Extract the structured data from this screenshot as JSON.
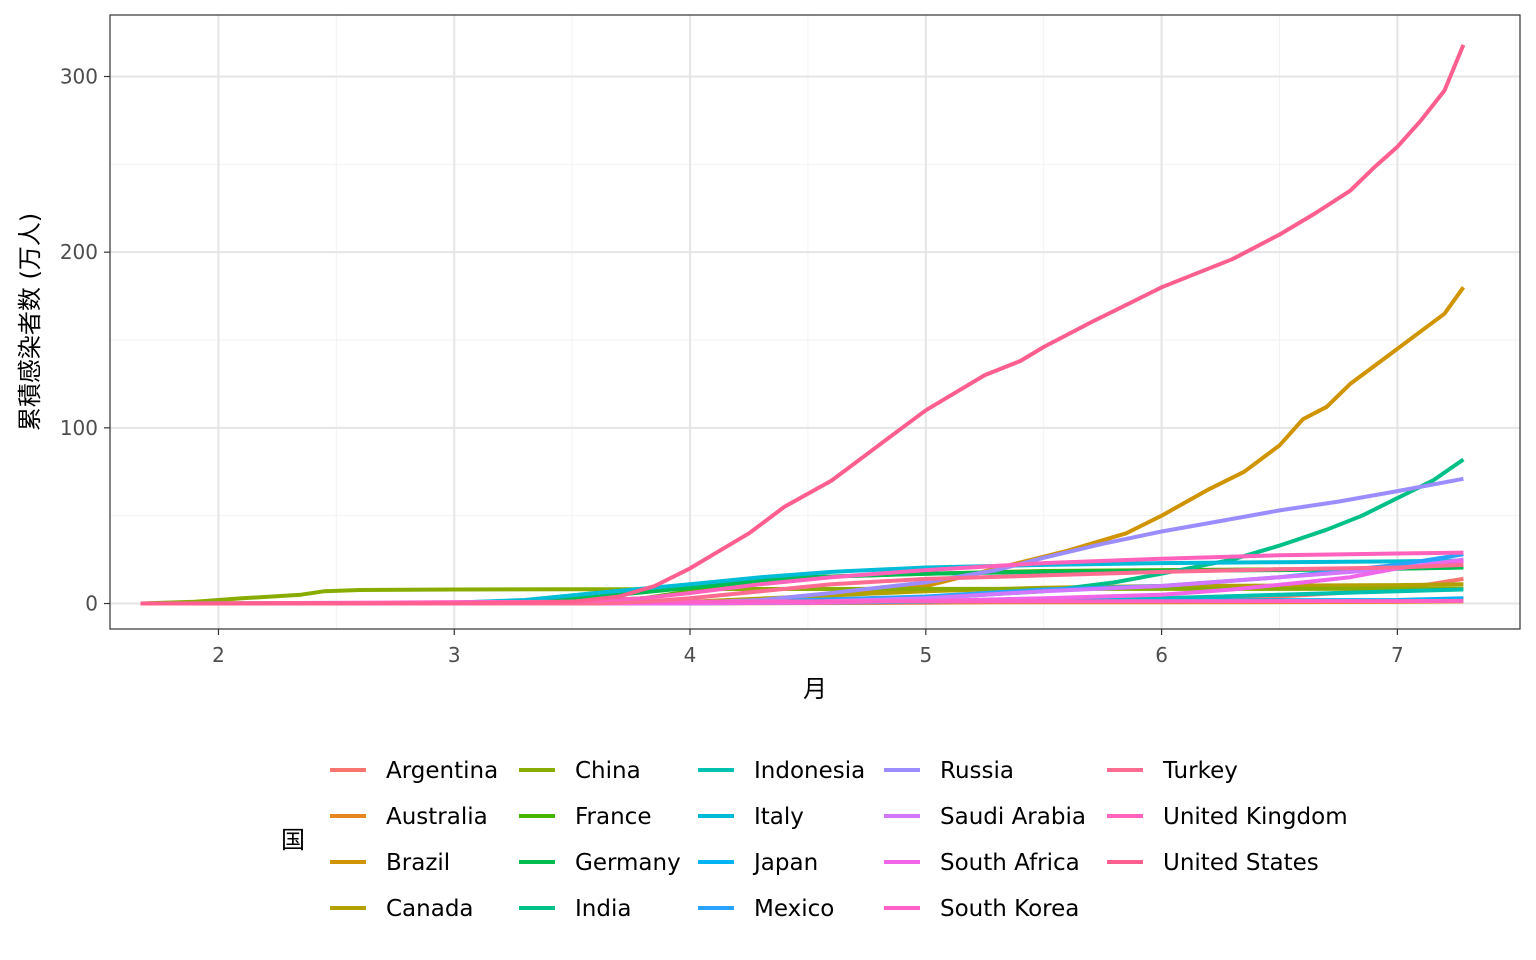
{
  "chart_data": {
    "type": "line",
    "xlabel": "月",
    "ylabel": "累積感染者数 (万人)",
    "xlim": [
      1.54,
      7.52
    ],
    "ylim": [
      -14.5,
      335
    ],
    "x_ticks": [
      2,
      3,
      4,
      5,
      6,
      7
    ],
    "y_ticks": [
      0,
      100,
      200,
      300
    ],
    "grid": true,
    "legend": {
      "title": "国",
      "position": "bottom",
      "columns": 5
    },
    "series": [
      {
        "name": "Argentina",
        "color": "#F8766D",
        "points": [
          [
            1.67,
            0
          ],
          [
            3.5,
            0
          ],
          [
            4,
            0.1
          ],
          [
            5,
            0.4
          ],
          [
            5.5,
            1
          ],
          [
            6,
            2
          ],
          [
            6.5,
            4
          ],
          [
            7,
            8
          ],
          [
            7.28,
            14
          ]
        ]
      },
      {
        "name": "Australia",
        "color": "#E7851E",
        "points": [
          [
            1.67,
            0
          ],
          [
            3,
            0
          ],
          [
            3.8,
            0.3
          ],
          [
            4,
            0.5
          ],
          [
            5,
            0.7
          ],
          [
            6,
            0.7
          ],
          [
            7,
            0.9
          ],
          [
            7.28,
            1.2
          ]
        ]
      },
      {
        "name": "Brazil",
        "color": "#D09400",
        "points": [
          [
            1.67,
            0
          ],
          [
            3.5,
            0
          ],
          [
            4,
            0.5
          ],
          [
            4.5,
            3
          ],
          [
            5,
            10
          ],
          [
            5.3,
            20
          ],
          [
            5.6,
            30
          ],
          [
            5.85,
            40
          ],
          [
            6,
            50
          ],
          [
            6.2,
            65
          ],
          [
            6.35,
            75
          ],
          [
            6.5,
            90
          ],
          [
            6.6,
            105
          ],
          [
            6.7,
            112
          ],
          [
            6.8,
            125
          ],
          [
            6.9,
            135
          ],
          [
            7,
            145
          ],
          [
            7.1,
            155
          ],
          [
            7.2,
            165
          ],
          [
            7.28,
            180
          ]
        ]
      },
      {
        "name": "Canada",
        "color": "#B2A100",
        "points": [
          [
            1.67,
            0
          ],
          [
            3.5,
            0.2
          ],
          [
            4,
            1
          ],
          [
            4.5,
            4
          ],
          [
            5,
            7
          ],
          [
            5.5,
            9
          ],
          [
            6,
            10
          ],
          [
            7,
            10.5
          ],
          [
            7.28,
            11
          ]
        ]
      },
      {
        "name": "China",
        "color": "#89AC00",
        "points": [
          [
            1.67,
            0
          ],
          [
            1.9,
            1
          ],
          [
            2.1,
            3
          ],
          [
            2.35,
            5
          ],
          [
            2.45,
            7
          ],
          [
            2.6,
            7.7
          ],
          [
            3,
            8
          ],
          [
            3.5,
            8.1
          ],
          [
            4,
            8.2
          ],
          [
            5,
            8.3
          ],
          [
            6,
            8.3
          ],
          [
            7,
            8.4
          ],
          [
            7.28,
            8.5
          ]
        ]
      },
      {
        "name": "France",
        "color": "#45B500",
        "points": [
          [
            1.67,
            0
          ],
          [
            3,
            0.2
          ],
          [
            3.5,
            1
          ],
          [
            3.8,
            3
          ],
          [
            4,
            7
          ],
          [
            4.3,
            12
          ],
          [
            4.5,
            15
          ],
          [
            5,
            17
          ],
          [
            5.5,
            18.5
          ],
          [
            6,
            19
          ],
          [
            6.5,
            19.5
          ],
          [
            7,
            20
          ],
          [
            7.28,
            20.5
          ]
        ]
      },
      {
        "name": "Germany",
        "color": "#00BC51",
        "points": [
          [
            1.67,
            0
          ],
          [
            3,
            0.2
          ],
          [
            3.4,
            2
          ],
          [
            3.7,
            5
          ],
          [
            4,
            9
          ],
          [
            4.3,
            13
          ],
          [
            4.5,
            15
          ],
          [
            5,
            17
          ],
          [
            5.5,
            18
          ],
          [
            6,
            18.5
          ],
          [
            6.5,
            19
          ],
          [
            7,
            19.8
          ],
          [
            7.28,
            20.5
          ]
        ]
      },
      {
        "name": "India",
        "color": "#00C087",
        "points": [
          [
            1.67,
            0
          ],
          [
            3.5,
            0
          ],
          [
            4,
            0.2
          ],
          [
            4.5,
            1
          ],
          [
            5,
            3
          ],
          [
            5.5,
            7
          ],
          [
            5.8,
            12
          ],
          [
            6,
            17
          ],
          [
            6.3,
            25
          ],
          [
            6.5,
            33
          ],
          [
            6.7,
            42
          ],
          [
            6.85,
            50
          ],
          [
            7,
            60
          ],
          [
            7.15,
            70
          ],
          [
            7.28,
            82
          ]
        ]
      },
      {
        "name": "Indonesia",
        "color": "#00C0B2",
        "points": [
          [
            1.67,
            0
          ],
          [
            3.8,
            0
          ],
          [
            4,
            0.1
          ],
          [
            5,
            1
          ],
          [
            5.5,
            2
          ],
          [
            6,
            3
          ],
          [
            6.5,
            5
          ],
          [
            7,
            7
          ],
          [
            7.28,
            8
          ]
        ]
      },
      {
        "name": "Italy",
        "color": "#00BCD6",
        "points": [
          [
            1.67,
            0
          ],
          [
            2.7,
            0.1
          ],
          [
            3,
            0.5
          ],
          [
            3.3,
            2
          ],
          [
            3.6,
            6
          ],
          [
            4,
            11
          ],
          [
            4.3,
            15
          ],
          [
            4.6,
            18
          ],
          [
            5,
            20.5
          ],
          [
            5.5,
            22
          ],
          [
            6,
            23
          ],
          [
            6.5,
            23.5
          ],
          [
            7,
            24
          ],
          [
            7.28,
            24.5
          ]
        ]
      },
      {
        "name": "Japan",
        "color": "#00B3F2",
        "points": [
          [
            1.67,
            0
          ],
          [
            3.5,
            0
          ],
          [
            4,
            0.3
          ],
          [
            4.5,
            1
          ],
          [
            5,
            1.5
          ],
          [
            6,
            1.7
          ],
          [
            7,
            2
          ],
          [
            7.28,
            3
          ]
        ]
      },
      {
        "name": "Mexico",
        "color": "#29A3FF",
        "points": [
          [
            1.67,
            0
          ],
          [
            3.8,
            0
          ],
          [
            4,
            0.2
          ],
          [
            4.5,
            2
          ],
          [
            5,
            4
          ],
          [
            5.5,
            8
          ],
          [
            6,
            10
          ],
          [
            6.5,
            15
          ],
          [
            7,
            22
          ],
          [
            7.28,
            28
          ]
        ]
      },
      {
        "name": "Russia",
        "color": "#9C8DFF",
        "points": [
          [
            1.67,
            0
          ],
          [
            3.8,
            0
          ],
          [
            4,
            0.5
          ],
          [
            4.3,
            2
          ],
          [
            4.6,
            6
          ],
          [
            5,
            12
          ],
          [
            5.3,
            19
          ],
          [
            5.5,
            26
          ],
          [
            5.75,
            34
          ],
          [
            6,
            41
          ],
          [
            6.25,
            47
          ],
          [
            6.5,
            53
          ],
          [
            6.75,
            58
          ],
          [
            7,
            64
          ],
          [
            7.28,
            71
          ]
        ]
      },
      {
        "name": "Saudi Arabia",
        "color": "#D277FF",
        "points": [
          [
            1.67,
            0
          ],
          [
            3.8,
            0
          ],
          [
            4,
            0.2
          ],
          [
            4.5,
            1
          ],
          [
            5,
            3
          ],
          [
            5.5,
            7
          ],
          [
            6,
            10
          ],
          [
            6.5,
            15
          ],
          [
            7,
            20
          ],
          [
            7.28,
            25
          ]
        ]
      },
      {
        "name": "South Africa",
        "color": "#F166E8",
        "points": [
          [
            1.67,
            0
          ],
          [
            3.8,
            0
          ],
          [
            4,
            0.1
          ],
          [
            4.5,
            0.5
          ],
          [
            5,
            1.5
          ],
          [
            5.5,
            3
          ],
          [
            6,
            5
          ],
          [
            6.3,
            8
          ],
          [
            6.6,
            12
          ],
          [
            6.8,
            15
          ],
          [
            7,
            20
          ],
          [
            7.28,
            24
          ]
        ]
      },
      {
        "name": "South Korea",
        "color": "#FF61C7",
        "points": [
          [
            1.67,
            0
          ],
          [
            2.3,
            0.3
          ],
          [
            2.7,
            0.5
          ],
          [
            3,
            0.8
          ],
          [
            3.5,
            1
          ],
          [
            4,
            1.1
          ],
          [
            5,
            1.2
          ],
          [
            6,
            1.3
          ],
          [
            7,
            1.4
          ],
          [
            7.28,
            1.5
          ]
        ]
      },
      {
        "name": "Turkey",
        "color": "#FF6C91",
        "points": [
          [
            1.67,
            0
          ],
          [
            3.6,
            0
          ],
          [
            3.8,
            1
          ],
          [
            4,
            3
          ],
          [
            4.3,
            7
          ],
          [
            4.6,
            11
          ],
          [
            5,
            14
          ],
          [
            5.5,
            16
          ],
          [
            6,
            18
          ],
          [
            6.5,
            19.5
          ],
          [
            7,
            20.5
          ],
          [
            7.28,
            22
          ]
        ]
      },
      {
        "name": "United Kingdom",
        "color": "#FF62BC",
        "points": [
          [
            1.67,
            0
          ],
          [
            3,
            0
          ],
          [
            3.5,
            1
          ],
          [
            3.8,
            3
          ],
          [
            4,
            6
          ],
          [
            4.3,
            11
          ],
          [
            4.6,
            15
          ],
          [
            5,
            19
          ],
          [
            5.5,
            23
          ],
          [
            6,
            25.5
          ],
          [
            6.5,
            27.5
          ],
          [
            7,
            28.5
          ],
          [
            7.28,
            29
          ]
        ]
      },
      {
        "name": "United States",
        "color": "#FF5F8E",
        "points": [
          [
            1.67,
            0
          ],
          [
            3,
            0.1
          ],
          [
            3.5,
            1
          ],
          [
            3.7,
            4
          ],
          [
            3.85,
            10
          ],
          [
            4,
            20
          ],
          [
            4.1,
            28
          ],
          [
            4.25,
            40
          ],
          [
            4.4,
            55
          ],
          [
            4.6,
            70
          ],
          [
            4.75,
            85
          ],
          [
            4.9,
            100
          ],
          [
            5,
            110
          ],
          [
            5.1,
            118
          ],
          [
            5.25,
            130
          ],
          [
            5.4,
            138
          ],
          [
            5.5,
            146
          ],
          [
            5.7,
            160
          ],
          [
            5.85,
            170
          ],
          [
            6,
            180
          ],
          [
            6.15,
            188
          ],
          [
            6.3,
            196
          ],
          [
            6.5,
            210
          ],
          [
            6.65,
            222
          ],
          [
            6.8,
            235
          ],
          [
            6.9,
            248
          ],
          [
            7,
            260
          ],
          [
            7.1,
            275
          ],
          [
            7.2,
            292
          ],
          [
            7.28,
            318
          ]
        ]
      }
    ]
  }
}
